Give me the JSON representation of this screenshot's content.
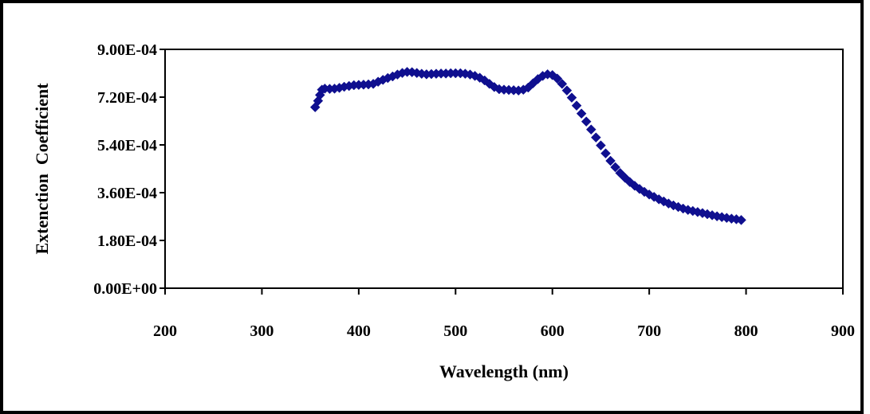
{
  "chart_data": {
    "type": "scatter",
    "title": "",
    "xlabel": "Wavelength (nm)",
    "ylabel": "Extenction  Coefficient",
    "xlim": [
      200,
      900
    ],
    "ylim": [
      0,
      0.0009
    ],
    "x_ticks": [
      200,
      300,
      400,
      500,
      600,
      700,
      800,
      900
    ],
    "x_tick_labels": [
      "200",
      "300",
      "400",
      "500",
      "600",
      "700",
      "800",
      "900"
    ],
    "y_ticks": [
      0,
      0.00018,
      0.00036,
      0.00054,
      0.00072,
      0.0009
    ],
    "y_tick_labels": [
      "0.00E+00",
      "1.80E-04",
      "3.60E-04",
      "5.40E-04",
      "7.20E-04",
      "9.00E-04"
    ],
    "grid": false,
    "legend": "none",
    "marker": "diamond",
    "series": [
      {
        "color": "#0f0f8f",
        "x": [
          355,
          358,
          360,
          362,
          365,
          370,
          375,
          380,
          385,
          390,
          395,
          400,
          405,
          410,
          415,
          420,
          425,
          430,
          435,
          440,
          445,
          450,
          455,
          460,
          465,
          470,
          475,
          480,
          485,
          490,
          495,
          500,
          505,
          510,
          515,
          520,
          525,
          530,
          535,
          540,
          545,
          550,
          555,
          560,
          565,
          570,
          575,
          580,
          585,
          590,
          595,
          600,
          605,
          610,
          615,
          620,
          625,
          630,
          635,
          640,
          645,
          650,
          655,
          660,
          665,
          670,
          675,
          680,
          685,
          690,
          695,
          700,
          705,
          710,
          715,
          720,
          725,
          730,
          735,
          740,
          745,
          750,
          755,
          760,
          765,
          770,
          775,
          780,
          785,
          790,
          795
        ],
        "y": [
          0.000682,
          0.000706,
          0.000728,
          0.000748,
          0.000752,
          0.000751,
          0.000752,
          0.000755,
          0.000759,
          0.000762,
          0.000765,
          0.000766,
          0.000767,
          0.000768,
          0.00077,
          0.000778,
          0.000785,
          0.000792,
          0.000798,
          0.000805,
          0.000811,
          0.000815,
          0.000814,
          0.000811,
          0.000808,
          0.000806,
          0.000807,
          0.000808,
          0.000809,
          0.000809,
          0.00081,
          0.00081,
          0.00081,
          0.000808,
          0.000805,
          0.0008,
          0.000793,
          0.000783,
          0.00077,
          0.000758,
          0.00075,
          0.000748,
          0.000747,
          0.000746,
          0.000745,
          0.000748,
          0.000756,
          0.000772,
          0.000788,
          0.0008,
          0.000806,
          0.000803,
          0.00079,
          0.00077,
          0.000745,
          0.000718,
          0.000688,
          0.000658,
          0.000628,
          0.000598,
          0.000568,
          0.000538,
          0.000508,
          0.00048,
          0.000456,
          0.000434,
          0.000416,
          0.0004,
          0.000386,
          0.000374,
          0.000363,
          0.000353,
          0.000344,
          0.000335,
          0.000327,
          0.000319,
          0.000312,
          0.000306,
          0.0003,
          0.000295,
          0.000291,
          0.000287,
          0.000283,
          0.000279,
          0.000275,
          0.000271,
          0.000268,
          0.000265,
          0.000262,
          0.00026,
          0.000257
        ]
      }
    ]
  }
}
